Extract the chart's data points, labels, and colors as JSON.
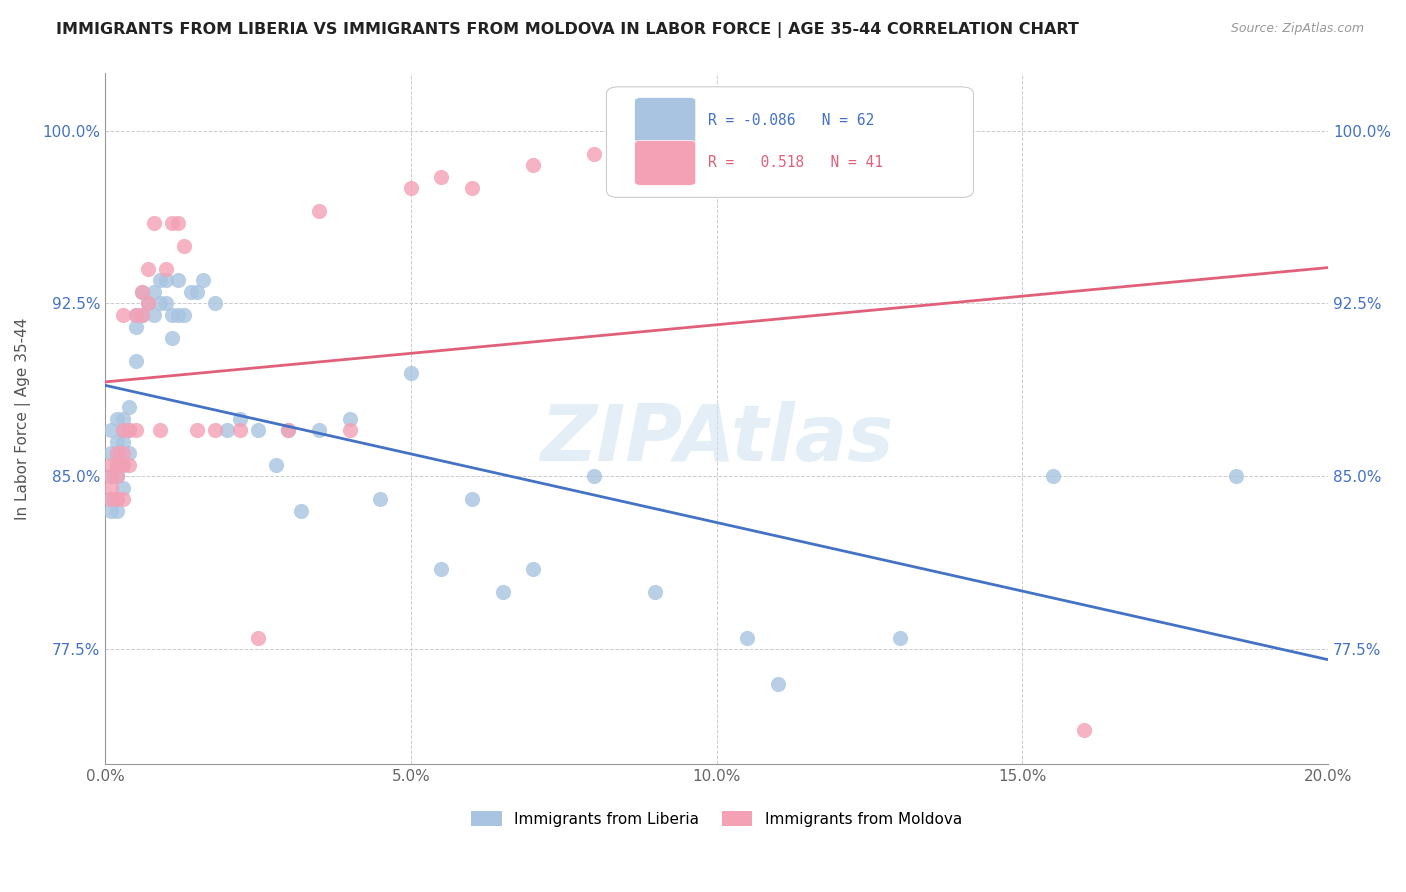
{
  "title": "IMMIGRANTS FROM LIBERIA VS IMMIGRANTS FROM MOLDOVA IN LABOR FORCE | AGE 35-44 CORRELATION CHART",
  "source": "Source: ZipAtlas.com",
  "ylabel": "In Labor Force | Age 35-44",
  "xlim": [
    0.0,
    0.2
  ],
  "ylim": [
    0.725,
    1.025
  ],
  "xtick_labels": [
    "0.0%",
    "5.0%",
    "10.0%",
    "15.0%",
    "20.0%"
  ],
  "xtick_vals": [
    0.0,
    0.05,
    0.1,
    0.15,
    0.2
  ],
  "ytick_labels": [
    "77.5%",
    "85.0%",
    "92.5%",
    "100.0%"
  ],
  "ytick_vals": [
    0.775,
    0.85,
    0.925,
    1.0
  ],
  "liberia_R": -0.086,
  "liberia_N": 62,
  "moldova_R": 0.518,
  "moldova_N": 41,
  "liberia_color": "#a8c4e0",
  "moldova_color": "#f4a0b5",
  "liberia_line_color": "#4472c4",
  "moldova_line_color": "#e0607a",
  "watermark": "ZIPAtlas",
  "liberia_x": [
    0.001,
    0.001,
    0.001,
    0.001,
    0.001,
    0.002,
    0.002,
    0.002,
    0.002,
    0.002,
    0.002,
    0.002,
    0.003,
    0.003,
    0.003,
    0.003,
    0.003,
    0.004,
    0.004,
    0.004,
    0.005,
    0.005,
    0.005,
    0.006,
    0.006,
    0.007,
    0.008,
    0.008,
    0.009,
    0.009,
    0.01,
    0.01,
    0.011,
    0.011,
    0.012,
    0.012,
    0.013,
    0.014,
    0.015,
    0.016,
    0.018,
    0.02,
    0.022,
    0.025,
    0.028,
    0.03,
    0.032,
    0.035,
    0.04,
    0.045,
    0.05,
    0.055,
    0.06,
    0.065,
    0.07,
    0.08,
    0.09,
    0.105,
    0.11,
    0.13,
    0.155,
    0.185
  ],
  "liberia_y": [
    0.87,
    0.86,
    0.85,
    0.84,
    0.835,
    0.875,
    0.865,
    0.86,
    0.855,
    0.85,
    0.84,
    0.835,
    0.875,
    0.87,
    0.865,
    0.855,
    0.845,
    0.88,
    0.87,
    0.86,
    0.92,
    0.915,
    0.9,
    0.93,
    0.92,
    0.925,
    0.93,
    0.92,
    0.935,
    0.925,
    0.935,
    0.925,
    0.92,
    0.91,
    0.935,
    0.92,
    0.92,
    0.93,
    0.93,
    0.935,
    0.925,
    0.87,
    0.875,
    0.87,
    0.855,
    0.87,
    0.835,
    0.87,
    0.875,
    0.84,
    0.895,
    0.81,
    0.84,
    0.8,
    0.81,
    0.85,
    0.8,
    0.78,
    0.76,
    0.78,
    0.85,
    0.85
  ],
  "moldova_x": [
    0.001,
    0.001,
    0.001,
    0.001,
    0.002,
    0.002,
    0.002,
    0.002,
    0.003,
    0.003,
    0.003,
    0.003,
    0.003,
    0.004,
    0.004,
    0.005,
    0.005,
    0.006,
    0.006,
    0.007,
    0.007,
    0.008,
    0.009,
    0.01,
    0.011,
    0.012,
    0.013,
    0.015,
    0.018,
    0.022,
    0.025,
    0.03,
    0.035,
    0.04,
    0.05,
    0.055,
    0.06,
    0.07,
    0.08,
    0.095,
    0.16
  ],
  "moldova_y": [
    0.855,
    0.85,
    0.845,
    0.84,
    0.86,
    0.855,
    0.85,
    0.84,
    0.92,
    0.87,
    0.86,
    0.855,
    0.84,
    0.87,
    0.855,
    0.92,
    0.87,
    0.93,
    0.92,
    0.94,
    0.925,
    0.96,
    0.87,
    0.94,
    0.96,
    0.96,
    0.95,
    0.87,
    0.87,
    0.87,
    0.78,
    0.87,
    0.965,
    0.87,
    0.975,
    0.98,
    0.975,
    0.985,
    0.99,
    1.0,
    0.74
  ]
}
